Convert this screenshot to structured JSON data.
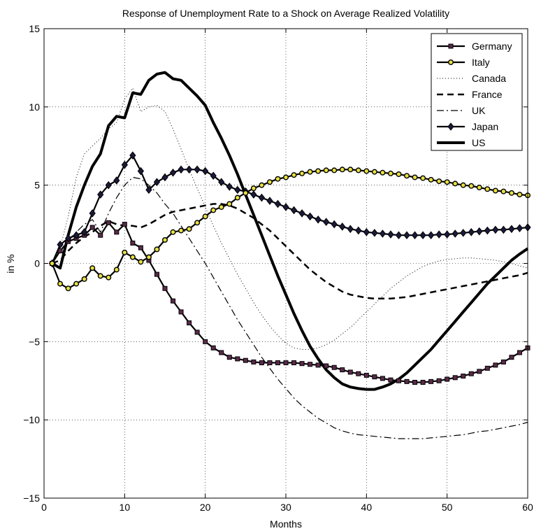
{
  "chart_data": {
    "type": "line",
    "title": "Response of Unemployment Rate to a Shock on Average Realized Volatility",
    "xlabel": "Months",
    "ylabel": "in %",
    "xlim": [
      0,
      60
    ],
    "ylim": [
      -15,
      15
    ],
    "xticks": [
      0,
      10,
      20,
      30,
      40,
      50,
      60
    ],
    "yticks": [
      -15,
      -10,
      -5,
      0,
      5,
      10,
      15
    ],
    "grid": true,
    "legend_position": "top-right",
    "series": [
      {
        "name": "Germany",
        "style": "solid-square-markers",
        "color": "#000000",
        "marker_fill": "#5a2a4a",
        "x": [
          1,
          2,
          3,
          4,
          5,
          6,
          7,
          8,
          9,
          10,
          11,
          12,
          13,
          14,
          15,
          16,
          17,
          18,
          19,
          20,
          21,
          22,
          23,
          24,
          25,
          26,
          27,
          28,
          29,
          30,
          31,
          32,
          33,
          34,
          35,
          36,
          37,
          38,
          39,
          40,
          41,
          42,
          43,
          44,
          45,
          46,
          47,
          48,
          49,
          50,
          51,
          52,
          53,
          54,
          55,
          56,
          57,
          58,
          59,
          60
        ],
        "y": [
          0,
          0.8,
          1.4,
          1.6,
          1.8,
          2.3,
          1.8,
          2.6,
          2.0,
          2.5,
          1.3,
          1.0,
          0.2,
          -0.7,
          -1.6,
          -2.4,
          -3.1,
          -3.8,
          -4.4,
          -5.0,
          -5.4,
          -5.7,
          -6.0,
          -6.1,
          -6.2,
          -6.3,
          -6.35,
          -6.35,
          -6.35,
          -6.35,
          -6.35,
          -6.4,
          -6.45,
          -6.5,
          -6.55,
          -6.65,
          -6.8,
          -6.95,
          -7.05,
          -7.15,
          -7.25,
          -7.35,
          -7.45,
          -7.5,
          -7.55,
          -7.6,
          -7.6,
          -7.55,
          -7.5,
          -7.4,
          -7.3,
          -7.2,
          -7.05,
          -6.9,
          -6.7,
          -6.5,
          -6.3,
          -6.0,
          -5.7,
          -5.4
        ]
      },
      {
        "name": "Italy",
        "style": "solid-circle-markers",
        "color": "#000000",
        "marker_fill": "#e8e040",
        "x": [
          1,
          2,
          3,
          4,
          5,
          6,
          7,
          8,
          9,
          10,
          11,
          12,
          13,
          14,
          15,
          16,
          17,
          18,
          19,
          20,
          21,
          22,
          23,
          24,
          25,
          26,
          27,
          28,
          29,
          30,
          31,
          32,
          33,
          34,
          35,
          36,
          37,
          38,
          39,
          40,
          41,
          42,
          43,
          44,
          45,
          46,
          47,
          48,
          49,
          50,
          51,
          52,
          53,
          54,
          55,
          56,
          57,
          58,
          59,
          60
        ],
        "y": [
          0,
          -1.3,
          -1.6,
          -1.3,
          -1.0,
          -0.3,
          -0.8,
          -0.9,
          -0.4,
          0.7,
          0.4,
          0.1,
          0.4,
          0.9,
          1.5,
          2.0,
          2.1,
          2.2,
          2.6,
          3.0,
          3.4,
          3.6,
          3.8,
          4.2,
          4.5,
          4.8,
          5.0,
          5.2,
          5.4,
          5.5,
          5.65,
          5.75,
          5.85,
          5.9,
          5.95,
          5.95,
          6.0,
          6.0,
          5.95,
          5.9,
          5.85,
          5.8,
          5.75,
          5.7,
          5.6,
          5.5,
          5.45,
          5.35,
          5.25,
          5.2,
          5.1,
          5.0,
          4.95,
          4.85,
          4.75,
          4.65,
          4.6,
          4.5,
          4.4,
          4.35
        ]
      },
      {
        "name": "Canada",
        "style": "dotted",
        "color": "#000000",
        "x": [
          1,
          2,
          3,
          4,
          5,
          6,
          7,
          8,
          9,
          10,
          11,
          12,
          13,
          14,
          15,
          16,
          17,
          18,
          19,
          20,
          21,
          22,
          23,
          24,
          25,
          26,
          27,
          28,
          29,
          30,
          31,
          32,
          33,
          34,
          35,
          36,
          37,
          38,
          39,
          40,
          41,
          42,
          43,
          44,
          45,
          46,
          47,
          48,
          49,
          50,
          51,
          52,
          53,
          54,
          55,
          56,
          57,
          58,
          59,
          60
        ],
        "y": [
          0,
          1.0,
          3.0,
          5.5,
          7.0,
          7.5,
          8.0,
          8.6,
          9.0,
          10.5,
          11.2,
          9.7,
          10.0,
          10.1,
          9.7,
          8.6,
          7.3,
          6.0,
          4.8,
          3.6,
          2.4,
          1.3,
          0.3,
          -0.7,
          -1.6,
          -2.5,
          -3.3,
          -4.0,
          -4.6,
          -5.1,
          -5.4,
          -5.5,
          -5.5,
          -5.4,
          -5.2,
          -4.9,
          -4.5,
          -4.1,
          -3.6,
          -3.1,
          -2.6,
          -2.1,
          -1.6,
          -1.2,
          -0.8,
          -0.5,
          -0.2,
          0.0,
          0.15,
          0.25,
          0.3,
          0.35,
          0.35,
          0.3,
          0.25,
          0.2,
          0.1,
          0.0,
          -0.15,
          -0.3
        ]
      },
      {
        "name": "France",
        "style": "dashed",
        "color": "#000000",
        "x": [
          1,
          2,
          3,
          4,
          5,
          6,
          7,
          8,
          9,
          10,
          11,
          12,
          13,
          14,
          15,
          16,
          17,
          18,
          19,
          20,
          21,
          22,
          23,
          24,
          25,
          26,
          27,
          28,
          29,
          30,
          31,
          32,
          33,
          34,
          35,
          36,
          37,
          38,
          39,
          40,
          41,
          42,
          43,
          44,
          45,
          46,
          47,
          48,
          49,
          50,
          51,
          52,
          53,
          54,
          55,
          56,
          57,
          58,
          59,
          60
        ],
        "y": [
          0,
          0.2,
          0.8,
          1.3,
          1.7,
          2.0,
          2.4,
          2.7,
          2.5,
          2.4,
          2.4,
          2.3,
          2.5,
          2.8,
          3.1,
          3.3,
          3.4,
          3.5,
          3.6,
          3.7,
          3.8,
          3.8,
          3.7,
          3.5,
          3.2,
          2.9,
          2.5,
          2.1,
          1.6,
          1.1,
          0.6,
          0.1,
          -0.4,
          -0.8,
          -1.2,
          -1.5,
          -1.8,
          -2.0,
          -2.1,
          -2.2,
          -2.25,
          -2.25,
          -2.25,
          -2.2,
          -2.15,
          -2.05,
          -1.95,
          -1.85,
          -1.75,
          -1.65,
          -1.55,
          -1.45,
          -1.35,
          -1.25,
          -1.15,
          -1.05,
          -0.95,
          -0.85,
          -0.75,
          -0.6
        ]
      },
      {
        "name": "UK",
        "style": "dash-dot",
        "color": "#000000",
        "x": [
          1,
          2,
          3,
          4,
          5,
          6,
          7,
          8,
          9,
          10,
          11,
          12,
          13,
          14,
          15,
          16,
          17,
          18,
          19,
          20,
          21,
          22,
          23,
          24,
          25,
          26,
          27,
          28,
          29,
          30,
          31,
          32,
          33,
          34,
          35,
          36,
          37,
          38,
          39,
          40,
          41,
          42,
          43,
          44,
          45,
          46,
          47,
          48,
          49,
          50,
          51,
          52,
          53,
          54,
          55,
          56,
          57,
          58,
          59,
          60
        ],
        "y": [
          0,
          0.8,
          1.5,
          2.0,
          2.5,
          2.8,
          2.0,
          3.2,
          4.2,
          5.0,
          5.5,
          5.4,
          5.0,
          4.5,
          3.8,
          3.2,
          2.4,
          1.6,
          0.8,
          0.0,
          -0.9,
          -1.8,
          -2.7,
          -3.6,
          -4.4,
          -5.2,
          -6.0,
          -6.7,
          -7.4,
          -8.0,
          -8.6,
          -9.1,
          -9.5,
          -9.9,
          -10.2,
          -10.5,
          -10.7,
          -10.85,
          -10.95,
          -11.0,
          -11.05,
          -11.1,
          -11.15,
          -11.2,
          -11.2,
          -11.2,
          -11.2,
          -11.15,
          -11.1,
          -11.05,
          -11.0,
          -10.95,
          -10.85,
          -10.75,
          -10.7,
          -10.6,
          -10.5,
          -10.4,
          -10.3,
          -10.15
        ]
      },
      {
        "name": "Japan",
        "style": "solid-diamond-markers",
        "color": "#000000",
        "marker_fill": "#1a1a3a",
        "x": [
          1,
          2,
          3,
          4,
          5,
          6,
          7,
          8,
          9,
          10,
          11,
          12,
          13,
          14,
          15,
          16,
          17,
          18,
          19,
          20,
          21,
          22,
          23,
          24,
          25,
          26,
          27,
          28,
          29,
          30,
          31,
          32,
          33,
          34,
          35,
          36,
          37,
          38,
          39,
          40,
          41,
          42,
          43,
          44,
          45,
          46,
          47,
          48,
          49,
          50,
          51,
          52,
          53,
          54,
          55,
          56,
          57,
          58,
          59,
          60
        ],
        "y": [
          0,
          1.2,
          1.6,
          1.8,
          2.0,
          3.2,
          4.4,
          5.0,
          5.3,
          6.3,
          6.9,
          5.9,
          4.7,
          5.2,
          5.5,
          5.8,
          6.0,
          6.0,
          6.0,
          5.9,
          5.6,
          5.2,
          4.9,
          4.7,
          4.6,
          4.4,
          4.2,
          4.0,
          3.8,
          3.6,
          3.4,
          3.2,
          3.0,
          2.8,
          2.65,
          2.5,
          2.35,
          2.2,
          2.1,
          2.0,
          1.95,
          1.9,
          1.85,
          1.8,
          1.8,
          1.8,
          1.8,
          1.8,
          1.85,
          1.85,
          1.9,
          1.95,
          2.0,
          2.05,
          2.1,
          2.15,
          2.15,
          2.2,
          2.25,
          2.3
        ]
      },
      {
        "name": "US",
        "style": "thick-solid",
        "color": "#000000",
        "x": [
          1,
          2,
          3,
          4,
          5,
          6,
          7,
          8,
          9,
          10,
          11,
          12,
          13,
          14,
          15,
          16,
          17,
          18,
          19,
          20,
          21,
          22,
          23,
          24,
          25,
          26,
          27,
          28,
          29,
          30,
          31,
          32,
          33,
          34,
          35,
          36,
          37,
          38,
          39,
          40,
          41,
          42,
          43,
          44,
          45,
          46,
          47,
          48,
          49,
          50,
          51,
          52,
          53,
          54,
          55,
          56,
          57,
          58,
          59,
          60
        ],
        "y": [
          0,
          -0.3,
          1.8,
          3.6,
          5.0,
          6.2,
          7.0,
          8.8,
          9.4,
          9.3,
          10.9,
          10.8,
          11.7,
          12.1,
          12.2,
          11.8,
          11.7,
          11.2,
          10.7,
          10.1,
          9.0,
          8.0,
          6.9,
          5.7,
          4.4,
          3.1,
          1.8,
          0.5,
          -0.8,
          -2.0,
          -3.2,
          -4.3,
          -5.3,
          -6.1,
          -6.8,
          -7.3,
          -7.7,
          -7.9,
          -8.0,
          -8.05,
          -8.05,
          -7.9,
          -7.7,
          -7.4,
          -7.0,
          -6.5,
          -6.0,
          -5.5,
          -4.9,
          -4.3,
          -3.7,
          -3.1,
          -2.5,
          -1.9,
          -1.3,
          -0.8,
          -0.3,
          0.2,
          0.6,
          0.95
        ]
      }
    ]
  }
}
